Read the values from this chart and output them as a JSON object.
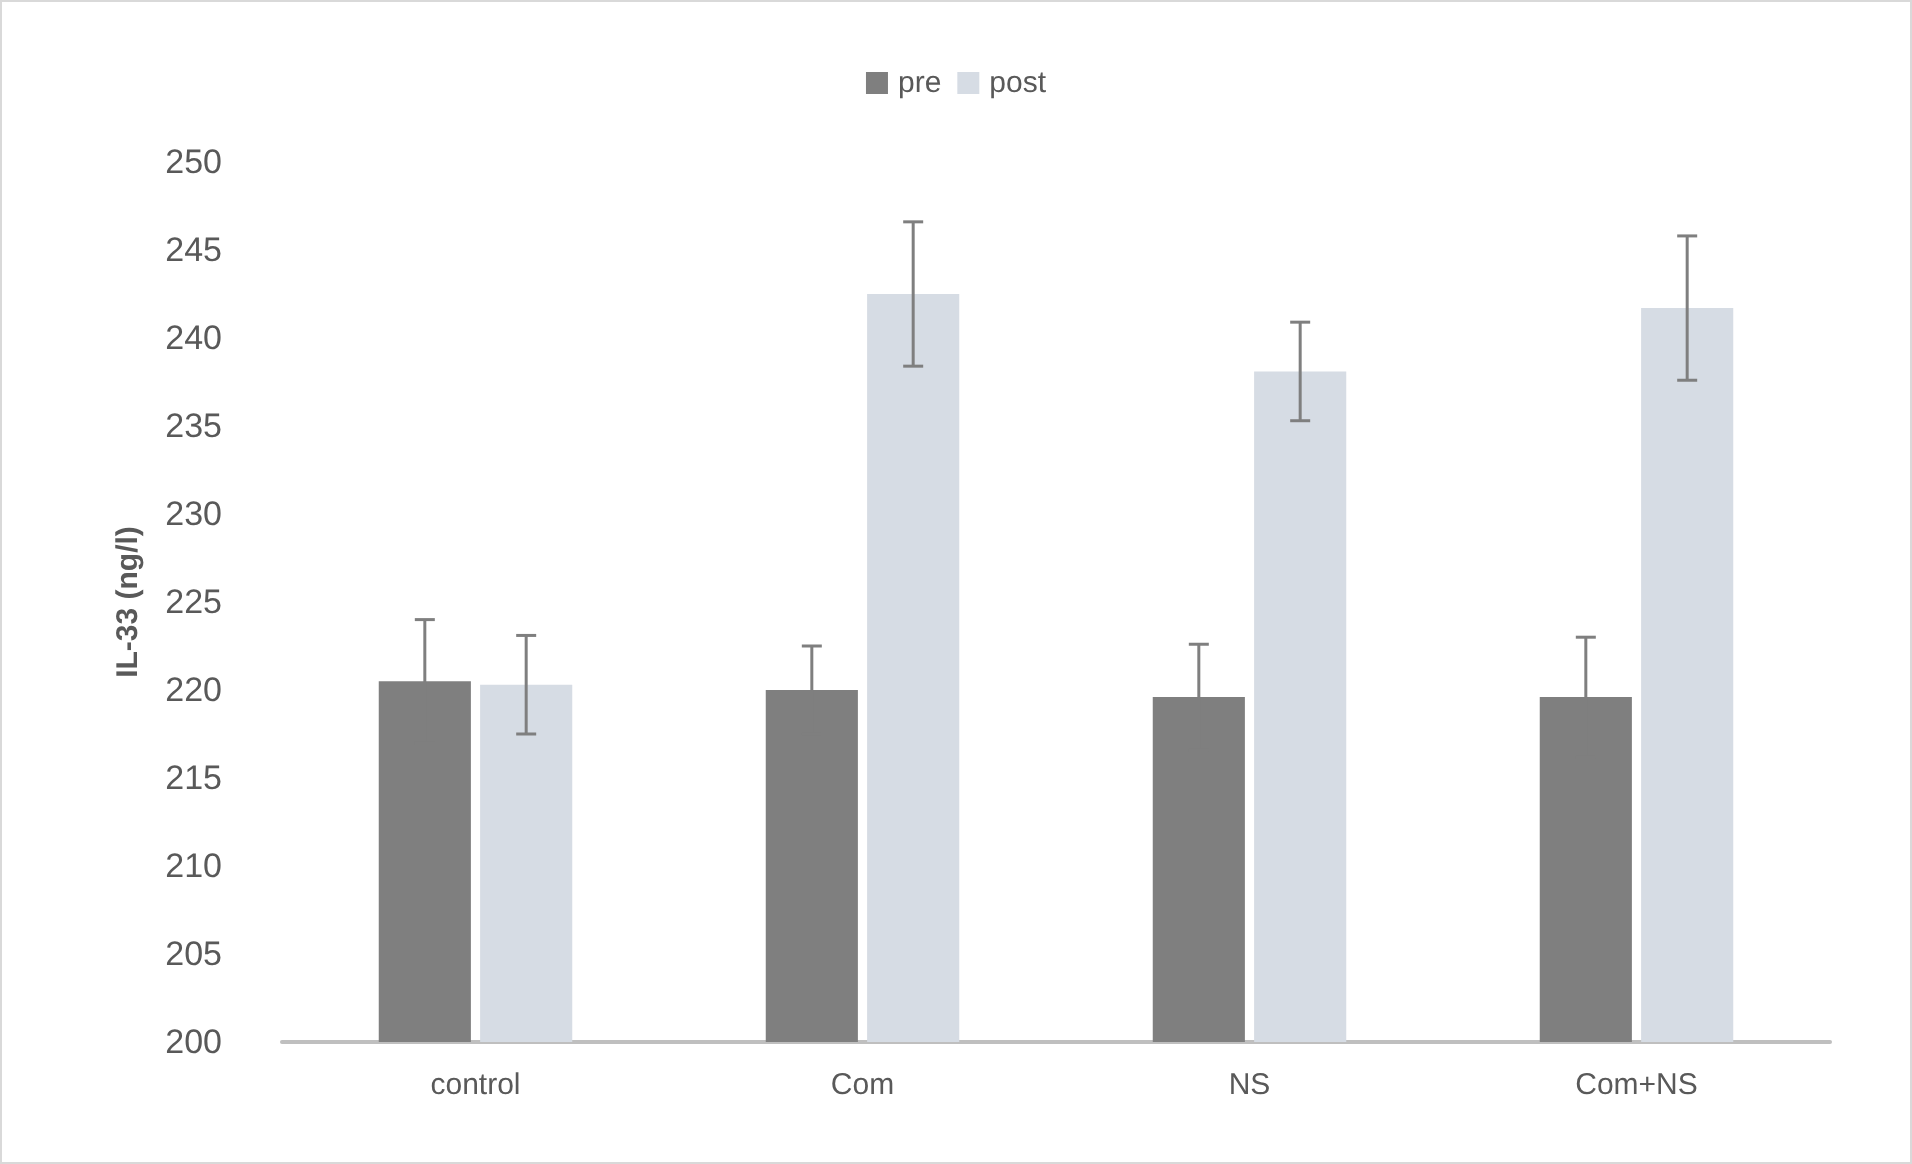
{
  "chart_data": {
    "type": "bar",
    "ylabel": "IL-33 (ng/l)",
    "categories": [
      "control",
      "Com",
      "NS",
      "Com+NS"
    ],
    "series": [
      {
        "name": "pre",
        "color": "#7f7f7f",
        "values": [
          220.5,
          220.0,
          219.6,
          219.6
        ],
        "errors": [
          3.5,
          2.5,
          3.0,
          3.4
        ]
      },
      {
        "name": "post",
        "color": "#d6dce4",
        "values": [
          220.3,
          242.5,
          238.1,
          241.7
        ],
        "errors": [
          2.8,
          4.1,
          2.8,
          4.1
        ]
      }
    ],
    "ylim": [
      200,
      250
    ],
    "yticks": [
      200,
      205,
      210,
      215,
      220,
      225,
      230,
      235,
      240,
      245,
      250
    ],
    "grid": false,
    "legend": "top"
  }
}
